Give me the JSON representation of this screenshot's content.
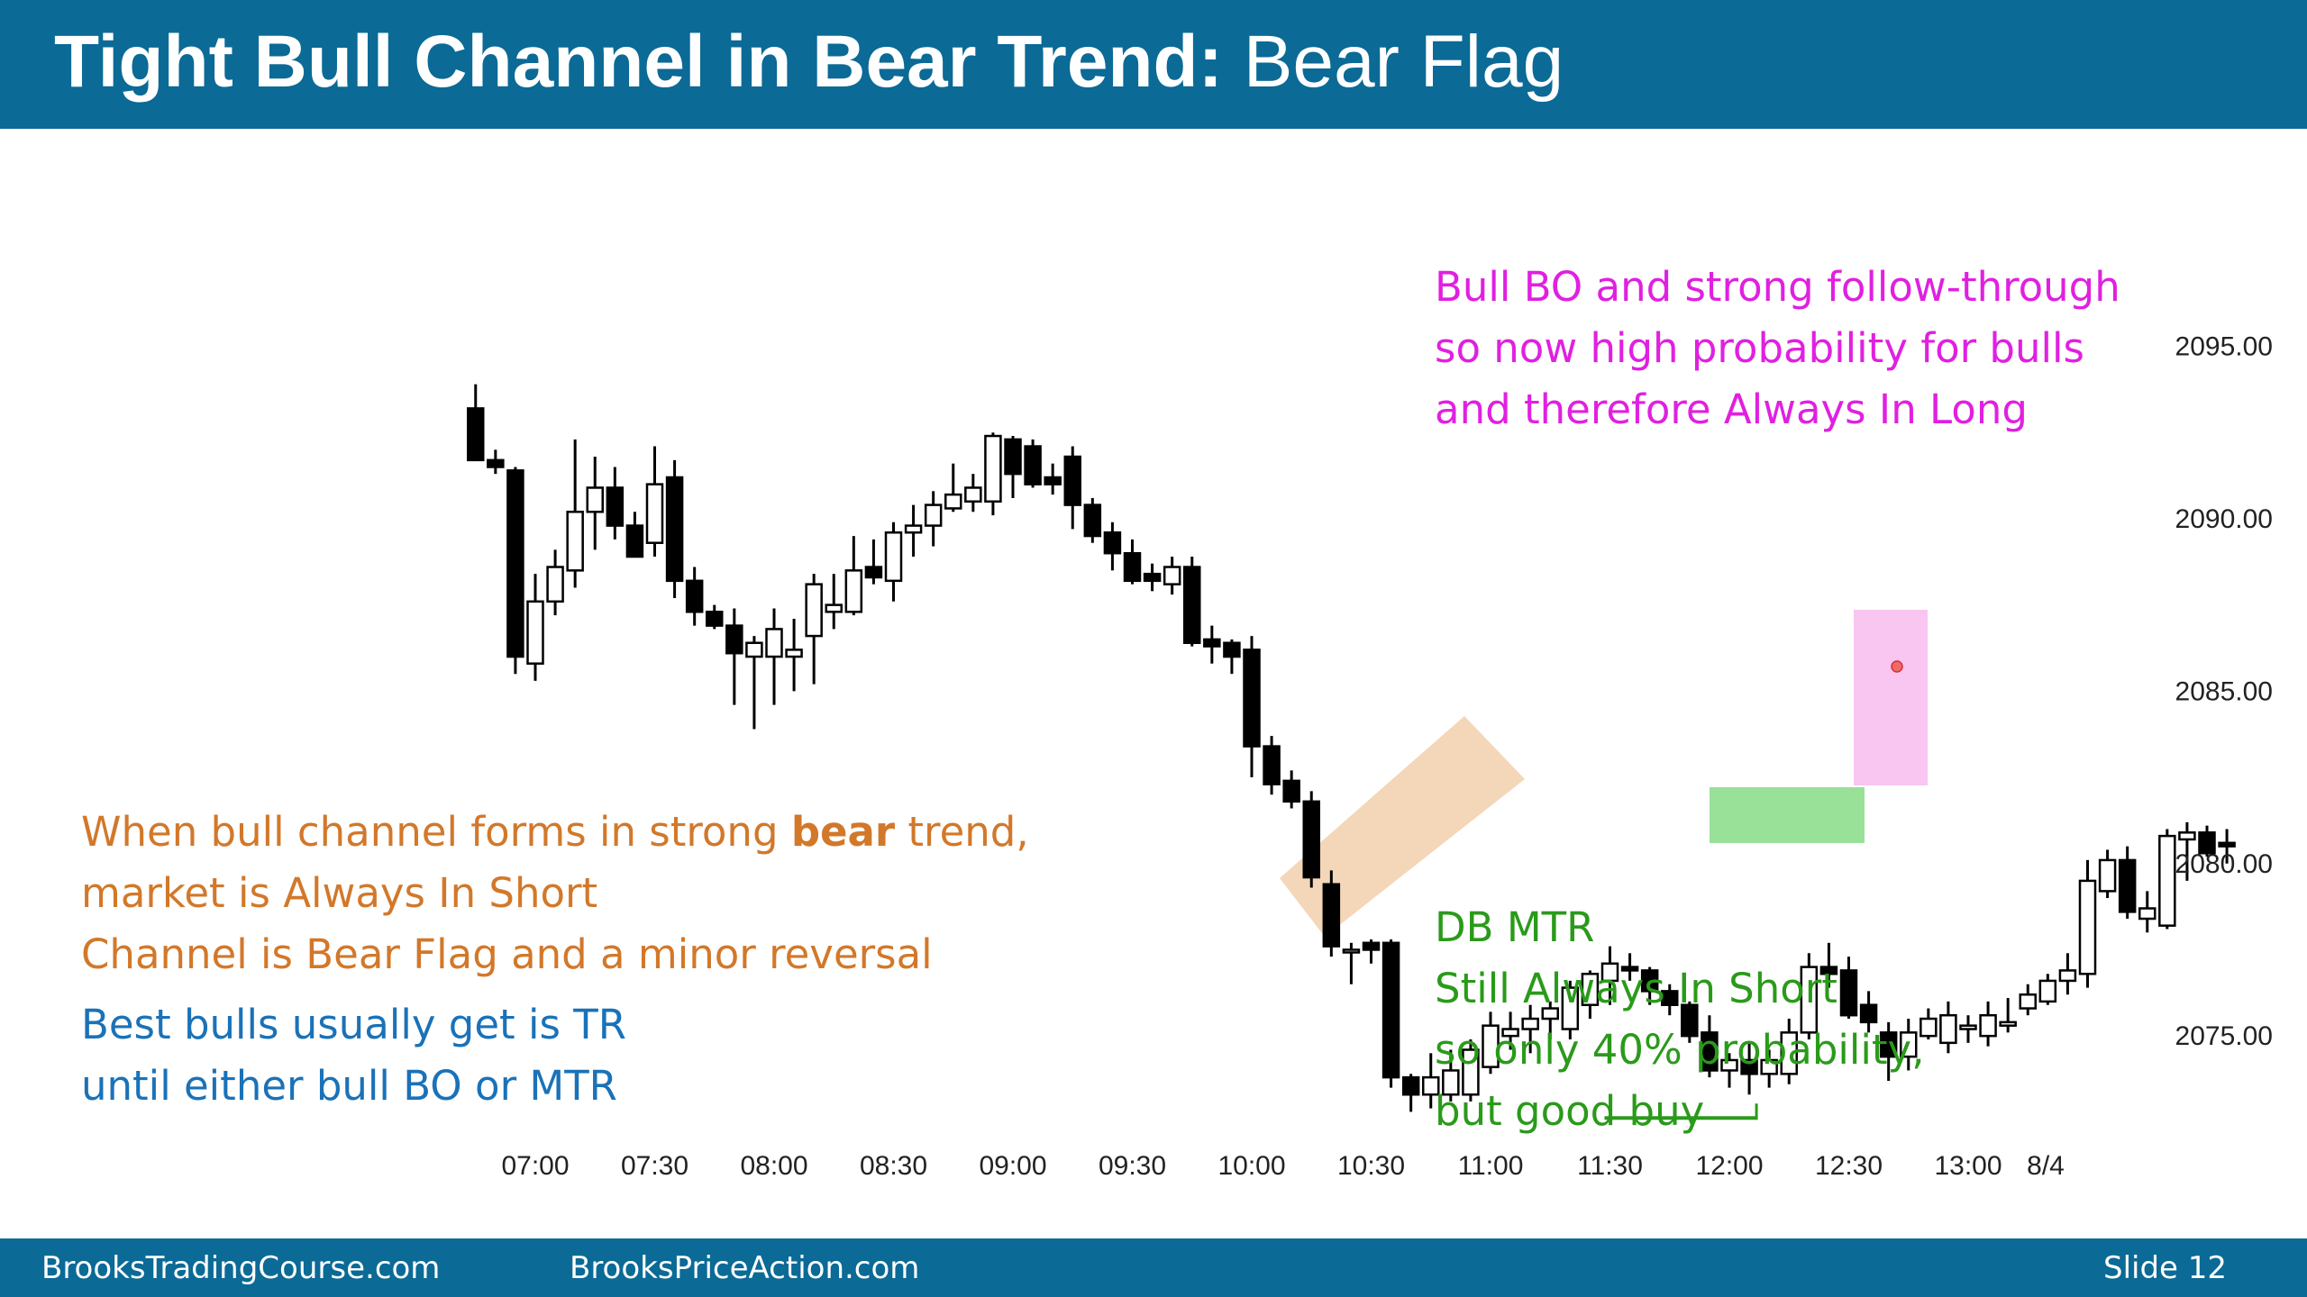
{
  "slide": {
    "title_bold": "Tight Bull Channel in Bear Trend:",
    "title_regular": " Bear Flag",
    "footer_left": "BrooksTradingCourse.com",
    "footer_middle": "BrooksPriceAction.com",
    "footer_slide": "Slide  12"
  },
  "annotations": {
    "bull_breakout": [
      "Bull BO and strong follow-through",
      "so now high probability for bulls",
      "and therefore Always In Long"
    ],
    "bear_flag_line1_pre": "When bull channel forms in strong ",
    "bear_flag_line1_bold": "bear",
    "bear_flag_line1_post": " trend,",
    "bear_flag_line2": "market is Always In Short",
    "bear_flag_line3": "Channel is Bear Flag and a minor reversal",
    "best_bulls": [
      "Best bulls usually get is TR",
      "until either bull BO or MTR"
    ],
    "db_mtr": [
      "DB MTR",
      "Still Always In Short",
      "so only 40% probability,",
      "but good buy"
    ]
  },
  "colors": {
    "title_bar": "#0b6a96",
    "bull_text": "#e020e0",
    "bear_flag_text": "#d2782a",
    "best_bulls_text": "#1a72b8",
    "db_mtr_text": "#2a9a1a",
    "channel_highlight": "#f0c8a0",
    "green_highlight": "#80d880",
    "pink_highlight": "#f6b8ec",
    "candle_bear": "#000000",
    "candle_bull": "#ffffff"
  },
  "chart_data": {
    "type": "candlestick",
    "title": "",
    "y_tick_labels": [
      "2095.00",
      "2090.00",
      "2085.00",
      "2080.00",
      "2075.00"
    ],
    "y_ticks": [
      2095,
      2090,
      2085,
      2080,
      2075
    ],
    "ylim": [
      2071.4,
      2101.7
    ],
    "x_tick_labels": [
      "07:00",
      "07:30",
      "08:00",
      "08:30",
      "09:00",
      "09:30",
      "10:00",
      "10:30",
      "11:00",
      "11:30",
      "12:00",
      "12:30",
      "13:00",
      "8/4"
    ],
    "grid": false,
    "bar_interval_minutes": 5,
    "bars": [
      {
        "time": "06:45",
        "o": 2093.2,
        "h": 2093.9,
        "l": 2091.7,
        "c": 2091.7
      },
      {
        "time": "06:50",
        "o": 2091.7,
        "h": 2092.0,
        "l": 2091.3,
        "c": 2091.5
      },
      {
        "time": "06:55",
        "o": 2091.4,
        "h": 2091.5,
        "l": 2085.5,
        "c": 2086.0
      },
      {
        "time": "07:00",
        "o": 2085.8,
        "h": 2088.4,
        "l": 2085.3,
        "c": 2087.6
      },
      {
        "time": "07:05",
        "o": 2087.6,
        "h": 2089.1,
        "l": 2087.2,
        "c": 2088.6
      },
      {
        "time": "07:10",
        "o": 2088.5,
        "h": 2092.3,
        "l": 2088.0,
        "c": 2090.2
      },
      {
        "time": "07:15",
        "o": 2090.2,
        "h": 2091.8,
        "l": 2089.1,
        "c": 2090.9
      },
      {
        "time": "07:20",
        "o": 2090.9,
        "h": 2091.5,
        "l": 2089.4,
        "c": 2089.8
      },
      {
        "time": "07:25",
        "o": 2089.8,
        "h": 2090.2,
        "l": 2088.9,
        "c": 2088.9
      },
      {
        "time": "07:30",
        "o": 2089.3,
        "h": 2092.1,
        "l": 2088.9,
        "c": 2091.0
      },
      {
        "time": "07:35",
        "o": 2091.2,
        "h": 2091.7,
        "l": 2087.7,
        "c": 2088.2
      },
      {
        "time": "07:40",
        "o": 2088.2,
        "h": 2088.6,
        "l": 2086.9,
        "c": 2087.3
      },
      {
        "time": "07:45",
        "o": 2087.3,
        "h": 2087.5,
        "l": 2086.8,
        "c": 2086.9
      },
      {
        "time": "07:50",
        "o": 2086.9,
        "h": 2087.4,
        "l": 2084.6,
        "c": 2086.1
      },
      {
        "time": "07:55",
        "o": 2086.0,
        "h": 2086.6,
        "l": 2083.9,
        "c": 2086.4
      },
      {
        "time": "08:00",
        "o": 2086.0,
        "h": 2087.4,
        "l": 2084.6,
        "c": 2086.8
      },
      {
        "time": "08:05",
        "o": 2086.0,
        "h": 2087.1,
        "l": 2085.0,
        "c": 2086.2
      },
      {
        "time": "08:10",
        "o": 2086.6,
        "h": 2088.4,
        "l": 2085.2,
        "c": 2088.1
      },
      {
        "time": "08:15",
        "o": 2087.3,
        "h": 2088.4,
        "l": 2086.8,
        "c": 2087.5
      },
      {
        "time": "08:20",
        "o": 2087.3,
        "h": 2089.5,
        "l": 2087.2,
        "c": 2088.5
      },
      {
        "time": "08:25",
        "o": 2088.6,
        "h": 2089.4,
        "l": 2088.1,
        "c": 2088.3
      },
      {
        "time": "08:30",
        "o": 2088.2,
        "h": 2089.9,
        "l": 2087.6,
        "c": 2089.6
      },
      {
        "time": "08:35",
        "o": 2089.6,
        "h": 2090.4,
        "l": 2088.9,
        "c": 2089.8
      },
      {
        "time": "08:40",
        "o": 2089.8,
        "h": 2090.8,
        "l": 2089.2,
        "c": 2090.4
      },
      {
        "time": "08:45",
        "o": 2090.3,
        "h": 2091.6,
        "l": 2090.2,
        "c": 2090.7
      },
      {
        "time": "08:50",
        "o": 2090.5,
        "h": 2091.3,
        "l": 2090.2,
        "c": 2090.9
      },
      {
        "time": "08:55",
        "o": 2090.5,
        "h": 2092.5,
        "l": 2090.1,
        "c": 2092.4
      },
      {
        "time": "09:00",
        "o": 2092.3,
        "h": 2092.4,
        "l": 2090.6,
        "c": 2091.3
      },
      {
        "time": "09:05",
        "o": 2092.1,
        "h": 2092.3,
        "l": 2090.9,
        "c": 2091.0
      },
      {
        "time": "09:10",
        "o": 2091.2,
        "h": 2091.6,
        "l": 2090.7,
        "c": 2091.0
      },
      {
        "time": "09:15",
        "o": 2091.8,
        "h": 2092.1,
        "l": 2089.7,
        "c": 2090.4
      },
      {
        "time": "09:20",
        "o": 2090.4,
        "h": 2090.6,
        "l": 2089.3,
        "c": 2089.5
      },
      {
        "time": "09:25",
        "o": 2089.6,
        "h": 2089.9,
        "l": 2088.5,
        "c": 2089.0
      },
      {
        "time": "09:30",
        "o": 2089.0,
        "h": 2089.4,
        "l": 2088.1,
        "c": 2088.2
      },
      {
        "time": "09:35",
        "o": 2088.4,
        "h": 2088.7,
        "l": 2087.9,
        "c": 2088.2
      },
      {
        "time": "09:40",
        "o": 2088.1,
        "h": 2088.9,
        "l": 2087.8,
        "c": 2088.6
      },
      {
        "time": "09:45",
        "o": 2088.6,
        "h": 2088.9,
        "l": 2086.3,
        "c": 2086.4
      },
      {
        "time": "09:50",
        "o": 2086.5,
        "h": 2086.9,
        "l": 2085.8,
        "c": 2086.3
      },
      {
        "time": "09:55",
        "o": 2086.4,
        "h": 2086.5,
        "l": 2085.5,
        "c": 2086.0
      },
      {
        "time": "10:00",
        "o": 2086.2,
        "h": 2086.6,
        "l": 2082.5,
        "c": 2083.4
      },
      {
        "time": "10:05",
        "o": 2083.4,
        "h": 2083.7,
        "l": 2082.0,
        "c": 2082.3
      },
      {
        "time": "10:10",
        "o": 2082.4,
        "h": 2082.7,
        "l": 2081.6,
        "c": 2081.8
      },
      {
        "time": "10:15",
        "o": 2081.8,
        "h": 2082.1,
        "l": 2079.3,
        "c": 2079.6
      },
      {
        "time": "10:20",
        "o": 2079.4,
        "h": 2079.8,
        "l": 2077.3,
        "c": 2077.6
      },
      {
        "time": "10:25",
        "o": 2077.5,
        "h": 2077.7,
        "l": 2076.5,
        "c": 2077.5
      },
      {
        "time": "10:30",
        "o": 2077.7,
        "h": 2077.8,
        "l": 2077.1,
        "c": 2077.5
      },
      {
        "time": "10:35",
        "o": 2077.7,
        "h": 2077.8,
        "l": 2073.5,
        "c": 2073.8
      },
      {
        "time": "10:40",
        "o": 2073.8,
        "h": 2073.9,
        "l": 2072.8,
        "c": 2073.3
      },
      {
        "time": "10:45",
        "o": 2073.3,
        "h": 2074.5,
        "l": 2072.9,
        "c": 2073.8
      },
      {
        "time": "10:50",
        "o": 2073.3,
        "h": 2074.6,
        "l": 2073.1,
        "c": 2074.0
      },
      {
        "time": "10:55",
        "o": 2073.3,
        "h": 2074.9,
        "l": 2073.1,
        "c": 2074.6
      },
      {
        "time": "11:00",
        "o": 2074.1,
        "h": 2075.7,
        "l": 2073.9,
        "c": 2075.3
      },
      {
        "time": "11:05",
        "o": 2075.0,
        "h": 2075.7,
        "l": 2074.6,
        "c": 2075.2
      },
      {
        "time": "11:10",
        "o": 2075.2,
        "h": 2075.9,
        "l": 2074.5,
        "c": 2075.5
      },
      {
        "time": "11:15",
        "o": 2075.5,
        "h": 2076.0,
        "l": 2074.9,
        "c": 2075.8
      },
      {
        "time": "11:20",
        "o": 2075.2,
        "h": 2076.6,
        "l": 2074.9,
        "c": 2076.4
      },
      {
        "time": "11:25",
        "o": 2075.9,
        "h": 2076.9,
        "l": 2075.5,
        "c": 2076.8
      },
      {
        "time": "11:30",
        "o": 2076.6,
        "h": 2077.6,
        "l": 2075.9,
        "c": 2077.1
      },
      {
        "time": "11:35",
        "o": 2077.0,
        "h": 2077.4,
        "l": 2076.6,
        "c": 2076.9
      },
      {
        "time": "11:40",
        "o": 2076.9,
        "h": 2077.0,
        "l": 2075.9,
        "c": 2076.3
      },
      {
        "time": "11:45",
        "o": 2076.3,
        "h": 2076.5,
        "l": 2075.6,
        "c": 2075.9
      },
      {
        "time": "11:50",
        "o": 2075.9,
        "h": 2076.0,
        "l": 2074.8,
        "c": 2075.0
      },
      {
        "time": "11:55",
        "o": 2075.1,
        "h": 2075.6,
        "l": 2073.8,
        "c": 2074.0
      },
      {
        "time": "12:00",
        "o": 2074.0,
        "h": 2074.5,
        "l": 2073.5,
        "c": 2074.3
      },
      {
        "time": "12:05",
        "o": 2074.3,
        "h": 2074.8,
        "l": 2073.3,
        "c": 2073.9
      },
      {
        "time": "12:10",
        "o": 2073.9,
        "h": 2074.6,
        "l": 2073.5,
        "c": 2074.3
      },
      {
        "time": "12:15",
        "o": 2073.9,
        "h": 2075.5,
        "l": 2073.6,
        "c": 2075.1
      },
      {
        "time": "12:20",
        "o": 2075.1,
        "h": 2077.4,
        "l": 2074.9,
        "c": 2077.0
      },
      {
        "time": "12:25",
        "o": 2077.0,
        "h": 2077.7,
        "l": 2076.4,
        "c": 2076.8
      },
      {
        "time": "12:30",
        "o": 2076.9,
        "h": 2077.3,
        "l": 2075.5,
        "c": 2075.6
      },
      {
        "time": "12:35",
        "o": 2075.9,
        "h": 2076.3,
        "l": 2075.1,
        "c": 2075.4
      },
      {
        "time": "12:40",
        "o": 2075.1,
        "h": 2075.4,
        "l": 2073.7,
        "c": 2074.4
      },
      {
        "time": "12:45",
        "o": 2074.4,
        "h": 2075.5,
        "l": 2074.0,
        "c": 2075.1
      },
      {
        "time": "12:50",
        "o": 2075.0,
        "h": 2075.8,
        "l": 2074.9,
        "c": 2075.5
      },
      {
        "time": "12:55",
        "o": 2074.8,
        "h": 2076.0,
        "l": 2074.5,
        "c": 2075.6
      },
      {
        "time": "13:00",
        "o": 2075.2,
        "h": 2075.6,
        "l": 2074.8,
        "c": 2075.3
      },
      {
        "time": "13:05",
        "o": 2075.0,
        "h": 2076.0,
        "l": 2074.7,
        "c": 2075.6
      },
      {
        "time": "13:10",
        "o": 2075.3,
        "h": 2076.1,
        "l": 2075.1,
        "c": 2075.4
      },
      {
        "time": "13:15",
        "o": 2075.8,
        "h": 2076.5,
        "l": 2075.6,
        "c": 2076.2
      },
      {
        "time": "13:20",
        "o": 2076.0,
        "h": 2076.8,
        "l": 2075.9,
        "c": 2076.6
      },
      {
        "time": "13:25",
        "o": 2076.6,
        "h": 2077.4,
        "l": 2076.2,
        "c": 2076.9
      },
      {
        "time": "13:30",
        "o": 2076.8,
        "h": 2080.1,
        "l": 2076.4,
        "c": 2079.5
      },
      {
        "time": "13:35",
        "o": 2079.2,
        "h": 2080.4,
        "l": 2079.0,
        "c": 2080.1
      },
      {
        "time": "13:40",
        "o": 2080.1,
        "h": 2080.5,
        "l": 2078.4,
        "c": 2078.6
      },
      {
        "time": "13:45",
        "o": 2078.4,
        "h": 2079.2,
        "l": 2078.0,
        "c": 2078.7
      },
      {
        "time": "13:50",
        "o": 2078.2,
        "h": 2081.0,
        "l": 2078.1,
        "c": 2080.8
      },
      {
        "time": "13:55",
        "o": 2080.7,
        "h": 2081.2,
        "l": 2079.5,
        "c": 2080.9
      },
      {
        "time": "14:00",
        "o": 2080.9,
        "h": 2081.1,
        "l": 2080.2,
        "c": 2080.3
      },
      {
        "time": "14:05",
        "o": 2080.6,
        "h": 2081.0,
        "l": 2080.0,
        "c": 2080.5
      }
    ],
    "shaded_regions": [
      {
        "label": "bull channel (bear flag)",
        "color": "#f0c8a0"
      },
      {
        "label": "green bull bars",
        "color": "#80d880"
      },
      {
        "label": "bull breakout",
        "color": "#f6b8ec"
      }
    ],
    "double_bottom_line": {
      "start": "11:30",
      "end": "12:05",
      "price": 2073.3
    }
  }
}
